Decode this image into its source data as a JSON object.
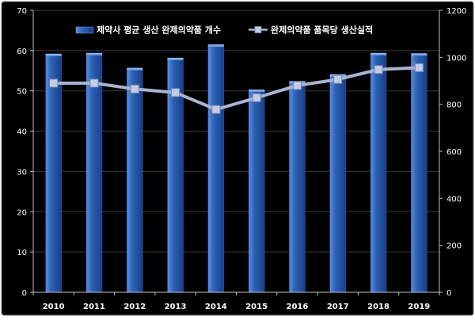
{
  "chart_data": {
    "type": "bar",
    "title": "",
    "xlabel": "",
    "ylabel": "",
    "categories": [
      "2010",
      "2011",
      "2012",
      "2013",
      "2014",
      "2015",
      "2016",
      "2017",
      "2018",
      "2019"
    ],
    "series": [
      {
        "name": "제약사 평균 생산 완제의약품 개수",
        "type": "bar",
        "axis": "left",
        "values": [
          59.2,
          59.4,
          55.7,
          58.2,
          61.5,
          50.3,
          52.4,
          54.1,
          59.4,
          59.3
        ]
      },
      {
        "name": "완제의약품 품목당 생산실적",
        "type": "line",
        "axis": "right",
        "values": [
          890,
          890,
          865,
          850,
          778,
          828,
          880,
          906,
          948,
          956
        ]
      }
    ],
    "y_left": {
      "range": [
        0,
        70
      ],
      "ticks": [
        "0",
        "10",
        "20",
        "30",
        "40",
        "50",
        "60",
        "70"
      ]
    },
    "y_right": {
      "range": [
        0,
        1200
      ],
      "ticks": [
        "0",
        "200",
        "400",
        "600",
        "800",
        "1000",
        "1200"
      ]
    },
    "grid": true,
    "legend_position": "top-center",
    "colors": {
      "background": "#000000",
      "bar_light": "#5b8fdc",
      "bar_mid": "#2c62b8",
      "bar_dark": "#173f86",
      "line": "#a9b4d2",
      "marker": "#c3cce6",
      "text": "#ffffff",
      "grid": "#3a3a3a"
    }
  }
}
